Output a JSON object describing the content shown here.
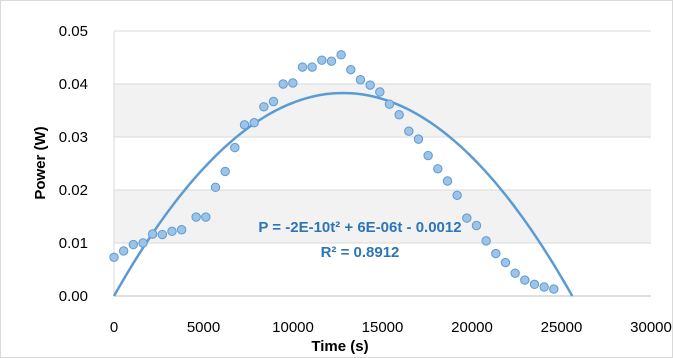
{
  "chart_data": {
    "type": "scatter",
    "title": "",
    "xlabel": "Time  (s)",
    "ylabel": "Power (W)",
    "xlim": [
      0,
      30000
    ],
    "ylim": [
      0,
      0.05
    ],
    "x_ticks": [
      0,
      5000,
      10000,
      15000,
      20000,
      25000,
      30000
    ],
    "x_tick_labels": [
      "0",
      "5000",
      "10000",
      "15000",
      "20000",
      "25000",
      "30000"
    ],
    "y_ticks": [
      0,
      0.01,
      0.02,
      0.03,
      0.04,
      0.05
    ],
    "y_tick_labels": [
      "0.00",
      "0.01",
      "0.02",
      "0.03",
      "0.04",
      "0.05"
    ],
    "grid": {
      "horizontal": true,
      "vertical": false
    },
    "legend": "none",
    "colors": {
      "points_fill": "#9dc3e6",
      "points_stroke": "#5b9bd5",
      "trendline": "#5b9bd5",
      "equation_text": "#2e75b6",
      "gridline": "#d9d9d9",
      "plot_band": "#f2f2f2"
    },
    "series": [
      {
        "points": [
          [
            0,
            0.0073
          ],
          [
            540,
            0.0085
          ],
          [
            1080,
            0.0097
          ],
          [
            1620,
            0.01
          ],
          [
            2160,
            0.0117
          ],
          [
            2700,
            0.0116
          ],
          [
            3240,
            0.0122
          ],
          [
            3780,
            0.0125
          ],
          [
            4590,
            0.0149
          ],
          [
            5130,
            0.0149
          ],
          [
            5670,
            0.0205
          ],
          [
            6210,
            0.0235
          ],
          [
            6750,
            0.028
          ],
          [
            7290,
            0.0323
          ],
          [
            7830,
            0.0327
          ],
          [
            8370,
            0.0357
          ],
          [
            8910,
            0.0367
          ],
          [
            9450,
            0.04
          ],
          [
            9990,
            0.0402
          ],
          [
            10530,
            0.0432
          ],
          [
            11070,
            0.0432
          ],
          [
            11610,
            0.0445
          ],
          [
            12150,
            0.0443
          ],
          [
            12690,
            0.0455
          ],
          [
            13230,
            0.0427
          ],
          [
            13770,
            0.0408
          ],
          [
            14310,
            0.0398
          ],
          [
            14850,
            0.0385
          ],
          [
            15390,
            0.0362
          ],
          [
            15930,
            0.0342
          ],
          [
            16470,
            0.0311
          ],
          [
            17010,
            0.0296
          ],
          [
            17550,
            0.0265
          ],
          [
            18090,
            0.024
          ],
          [
            18630,
            0.0217
          ],
          [
            19170,
            0.019
          ],
          [
            19710,
            0.0147
          ],
          [
            20250,
            0.0133
          ],
          [
            20790,
            0.0104
          ],
          [
            21330,
            0.008
          ],
          [
            21870,
            0.0063
          ],
          [
            22410,
            0.0043
          ],
          [
            22950,
            0.003
          ],
          [
            23490,
            0.0022
          ],
          [
            24030,
            0.0017
          ],
          [
            24570,
            0.0013
          ]
        ]
      }
    ],
    "trendline": {
      "kind": "polynomial",
      "x_range": [
        0,
        25600
      ],
      "y_range": [
        0,
        0.0383
      ],
      "peak": [
        12800,
        0.0383
      ],
      "equation_text": "P = -2E-10t² + 6E-06t - 0.0012",
      "r2_text": "R² = 0.8912"
    }
  }
}
